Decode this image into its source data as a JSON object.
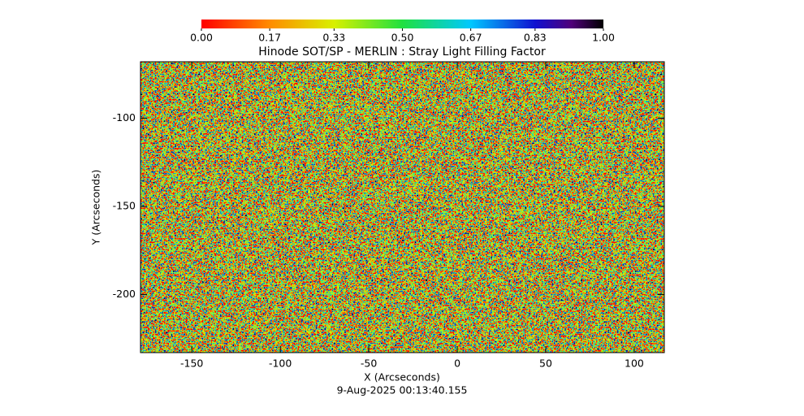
{
  "chart_data": {
    "type": "heatmap",
    "title": "Hinode SOT/SP - MERLIN : Stray Light Filling Factor",
    "xlabel": "X (Arcseconds)",
    "ylabel": "Y (Arcseconds)",
    "footnote": "9-Aug-2025 00:13:40.155",
    "xlim": [
      -179,
      117
    ],
    "ylim": [
      -233,
      -68
    ],
    "xticks": [
      -150,
      -100,
      -50,
      0,
      50,
      100
    ],
    "yticks": [
      -200,
      -150,
      -100
    ],
    "colorbar": {
      "lim": [
        0,
        1
      ],
      "ticks": [
        {
          "value": 0,
          "label": "0.00"
        },
        {
          "value": 0.17,
          "label": "0.17"
        },
        {
          "value": 0.33,
          "label": "0.33"
        },
        {
          "value": 0.5,
          "label": "0.50"
        },
        {
          "value": 0.67,
          "label": "0.67"
        },
        {
          "value": 0.83,
          "label": "0.83"
        },
        {
          "value": 1,
          "label": "1.00"
        }
      ]
    }
  }
}
